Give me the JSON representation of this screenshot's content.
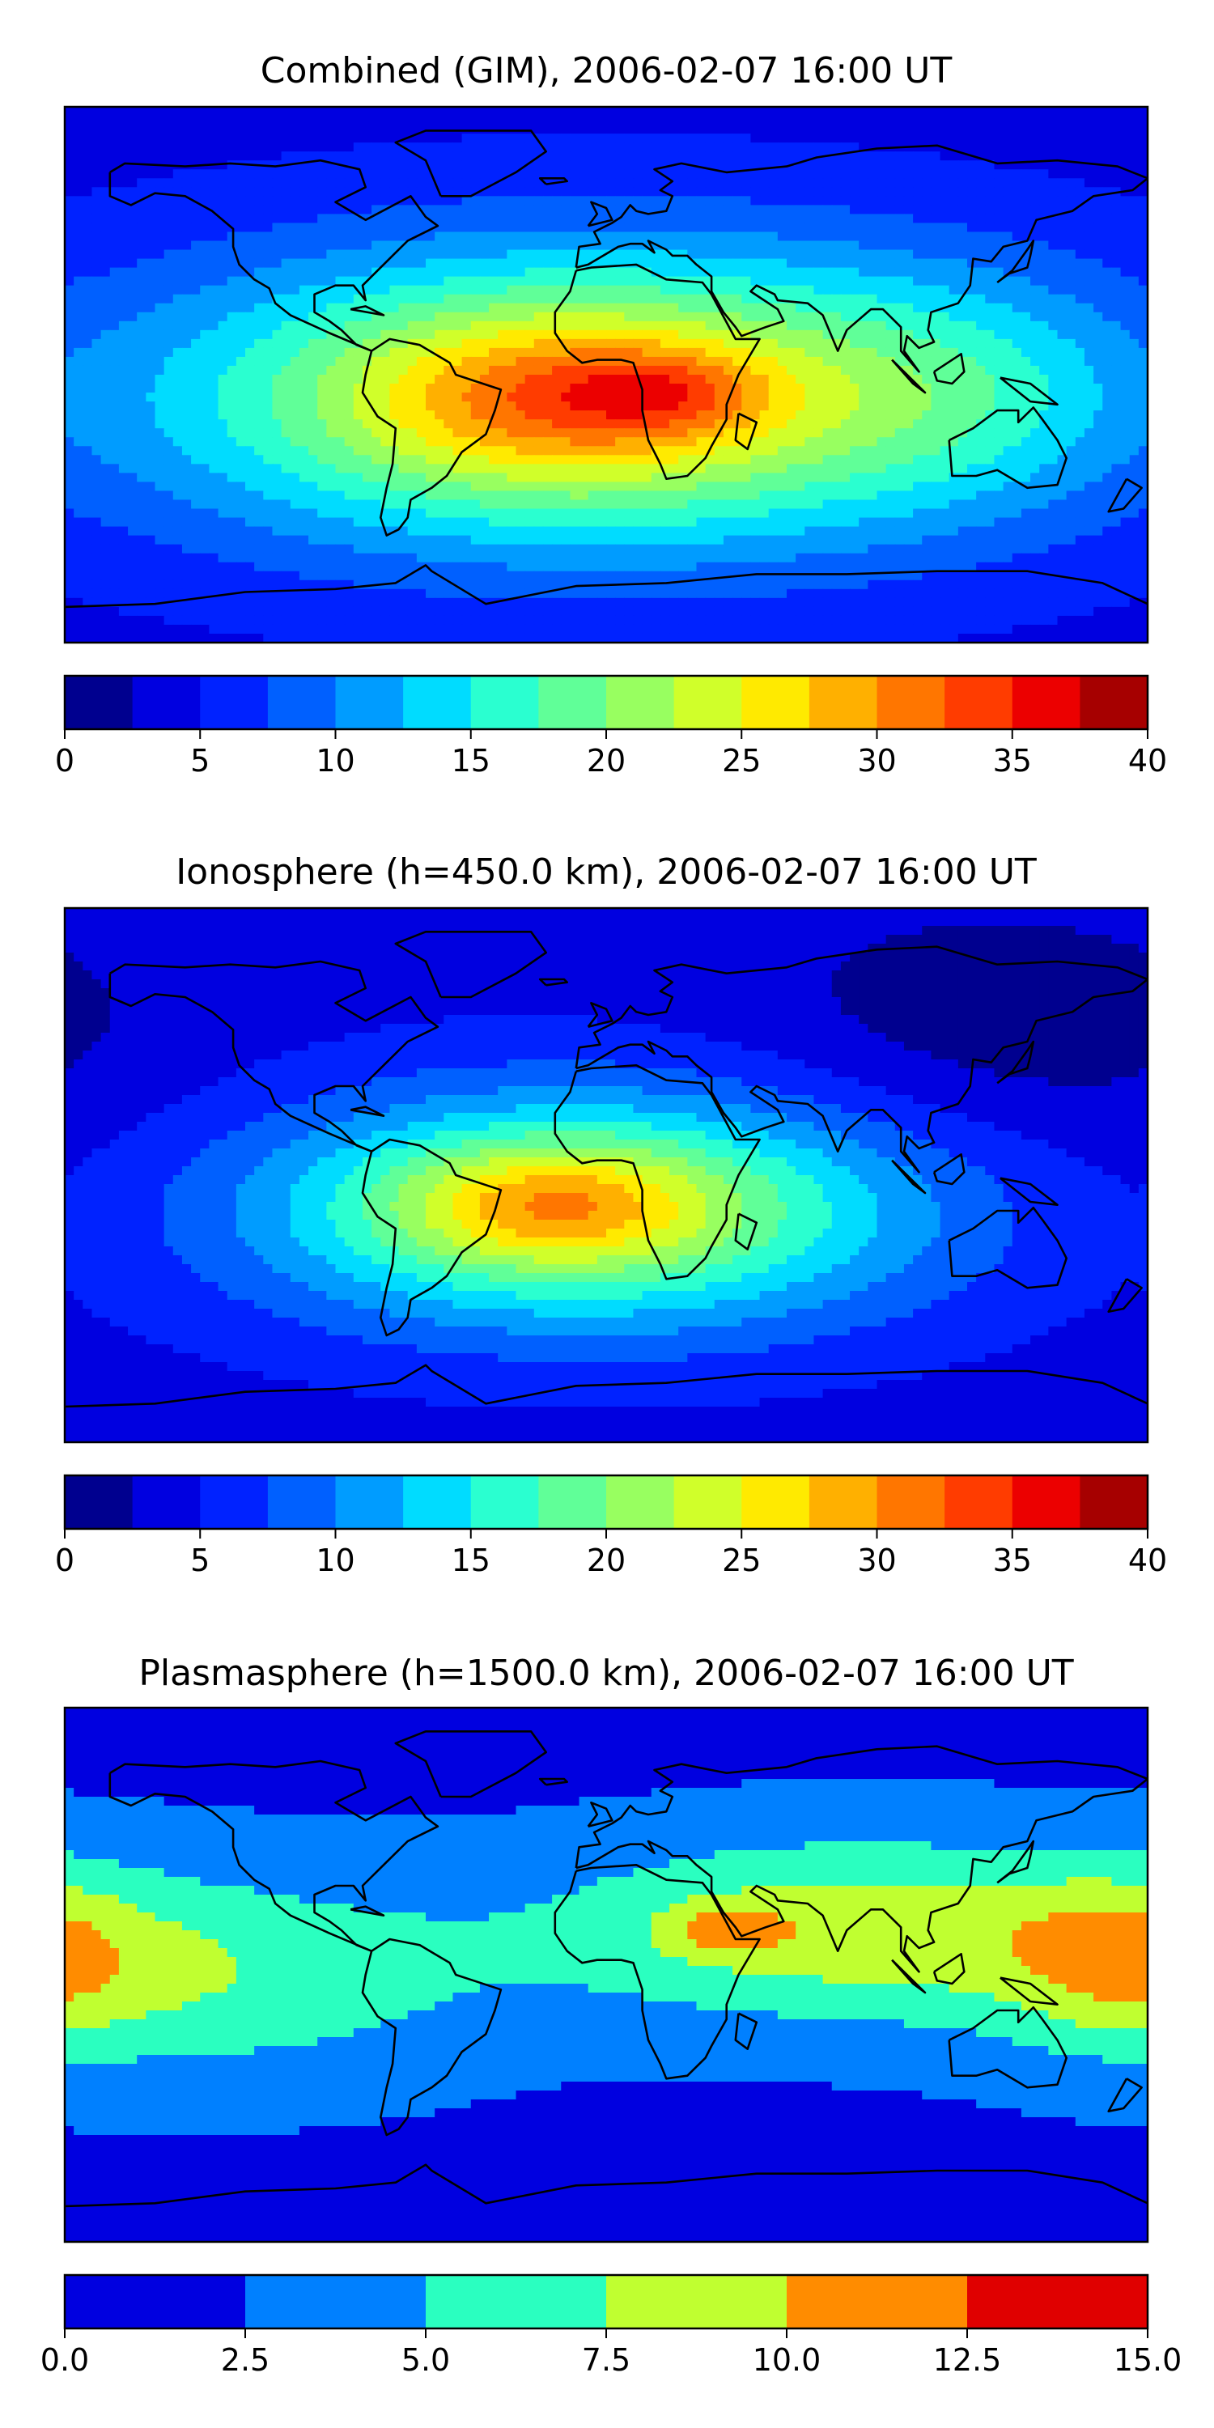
{
  "panels": [
    {
      "title": "Combined (GIM), 2006-02-07 16:00 UT",
      "colorbar": {
        "levels": [
          0,
          2.5,
          5,
          7.5,
          10,
          12.5,
          15,
          17.5,
          20,
          22.5,
          25,
          27.5,
          30,
          32.5,
          35,
          37.5,
          40
        ],
        "ticks": [
          "0",
          "5",
          "10",
          "15",
          "20",
          "25",
          "30",
          "35",
          "40"
        ],
        "tick_values": [
          0,
          5,
          10,
          15,
          20,
          25,
          30,
          35,
          40
        ],
        "colors": [
          "#00008f",
          "#0000e0",
          "#0022ff",
          "#0060ff",
          "#009cff",
          "#00dcff",
          "#2affd0",
          "#60ff98",
          "#98ff60",
          "#d0ff2a",
          "#ffea00",
          "#ffb000",
          "#ff7600",
          "#ff3c00",
          "#ec0000",
          "#a60000"
        ]
      },
      "blobs": [
        {
          "lon": 0,
          "lat": -8,
          "slon": 110,
          "slat": 36,
          "v": 21
        },
        {
          "lon": -20,
          "lat": -8,
          "slon": 45,
          "slat": 20,
          "v": 8
        },
        {
          "lon": 20,
          "lat": -6,
          "slon": 25,
          "slat": 10,
          "v": 6
        },
        {
          "lon": 120,
          "lat": -5,
          "slon": 40,
          "slat": 25,
          "v": 3
        }
      ],
      "base": 4
    },
    {
      "title": "Ionosphere  (h=450.0 km), 2006-02-07 16:00 UT",
      "colorbar": {
        "levels": [
          0,
          2.5,
          5,
          7.5,
          10,
          12.5,
          15,
          17.5,
          20,
          22.5,
          25,
          27.5,
          30,
          32.5,
          35,
          37.5,
          40
        ],
        "ticks": [
          "0",
          "5",
          "10",
          "15",
          "20",
          "25",
          "30",
          "35",
          "40"
        ],
        "tick_values": [
          0,
          5,
          10,
          15,
          20,
          25,
          30,
          35,
          40
        ],
        "colors": [
          "#00008f",
          "#0000e0",
          "#0022ff",
          "#0060ff",
          "#009cff",
          "#00dcff",
          "#2affd0",
          "#60ff98",
          "#98ff60",
          "#d0ff2a",
          "#ffea00",
          "#ffb000",
          "#ff7600",
          "#ff3c00",
          "#ec0000",
          "#a60000"
        ]
      },
      "blobs": [
        {
          "lon": -5,
          "lat": -12,
          "slon": 80,
          "slat": 28,
          "v": 18
        },
        {
          "lon": -20,
          "lat": -10,
          "slon": 35,
          "slat": 14,
          "v": 9
        },
        {
          "lon": 130,
          "lat": 50,
          "slon": 60,
          "slat": 30,
          "v": -3
        }
      ],
      "base": 4
    },
    {
      "title": "Plasmasphere (h=1500.0 km), 2006-02-07 16:00 UT",
      "colorbar": {
        "levels": [
          0.0,
          2.5,
          5.0,
          7.5,
          10.0,
          12.5,
          15.0
        ],
        "ticks": [
          "0.0",
          "2.5",
          "5.0",
          "7.5",
          "10.0",
          "12.5",
          "15.0"
        ],
        "tick_values": [
          0.0,
          2.5,
          5.0,
          7.5,
          10.0,
          12.5,
          15.0
        ],
        "colors": [
          "#0000e0",
          "#0080ff",
          "#2affc0",
          "#c0ff30",
          "#ff8c00",
          "#e00000"
        ]
      },
      "blobs": [
        {
          "lon": 80,
          "lat": 15,
          "slon": 70,
          "slat": 22,
          "v": 7
        },
        {
          "lon": 40,
          "lat": 15,
          "slon": 14,
          "slat": 6,
          "v": 4
        },
        {
          "lon": -130,
          "lat": 0,
          "slon": 65,
          "slat": 25,
          "v": 5
        },
        {
          "lon": 170,
          "lat": 5,
          "slon": 25,
          "slat": 20,
          "v": 4
        }
      ],
      "base": 2
    }
  ]
}
